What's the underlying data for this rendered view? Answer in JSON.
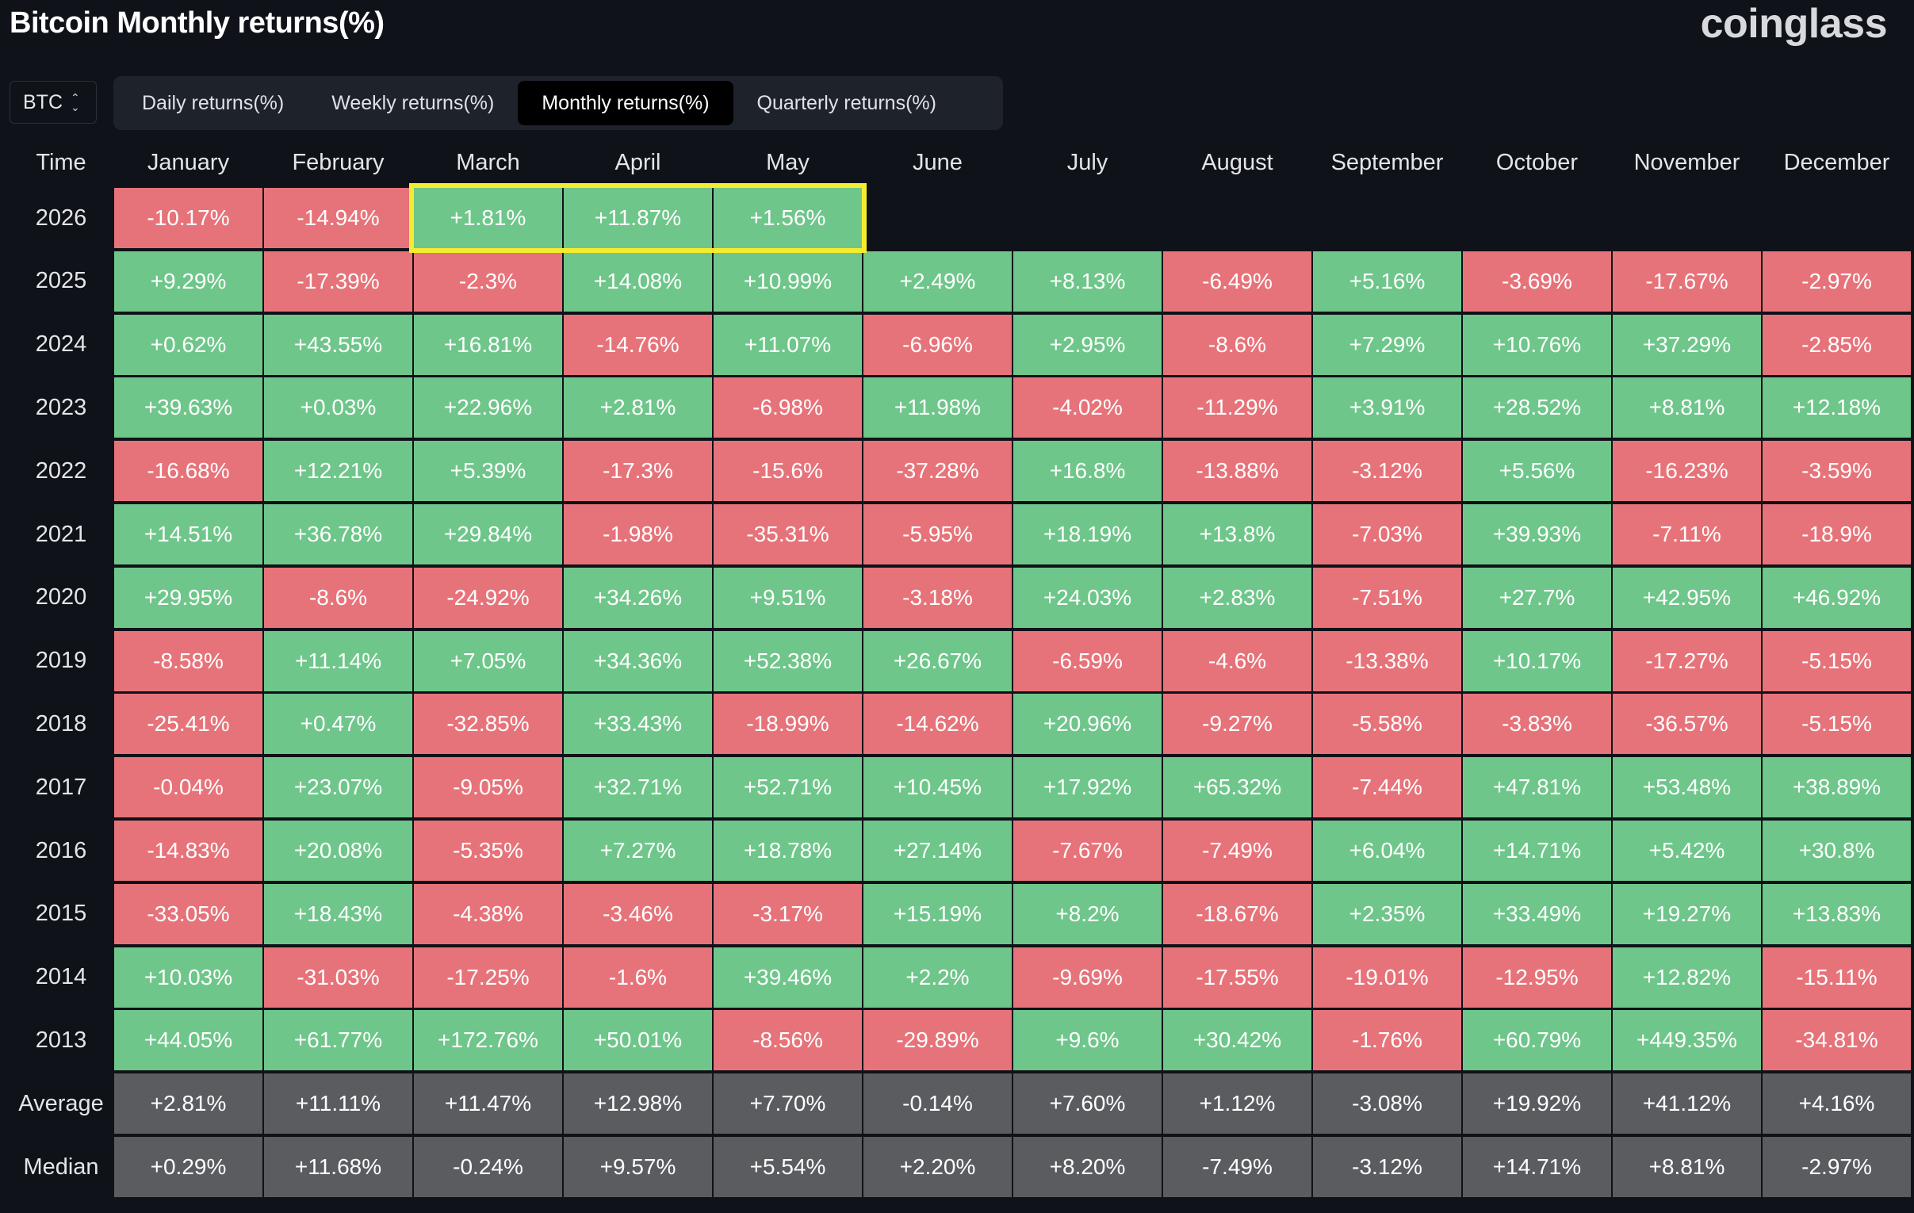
{
  "header": {
    "title": "Bitcoin Monthly returns(%)",
    "brand": "coinglass"
  },
  "asset_select": {
    "value": "BTC"
  },
  "tabs": [
    {
      "label": "Daily returns(%)",
      "active": false
    },
    {
      "label": "Weekly returns(%)",
      "active": false
    },
    {
      "label": "Monthly returns(%)",
      "active": true
    },
    {
      "label": "Quarterly returns(%)",
      "active": false
    }
  ],
  "table": {
    "time_header": "Time",
    "months": [
      "January",
      "February",
      "March",
      "April",
      "May",
      "June",
      "July",
      "August",
      "September",
      "October",
      "November",
      "December"
    ],
    "rows": [
      {
        "year": "2026",
        "values": [
          "-10.17%",
          "-14.94%",
          "+1.81%",
          "+11.87%",
          "+1.56%",
          "",
          "",
          "",
          "",
          "",
          "",
          ""
        ]
      },
      {
        "year": "2025",
        "values": [
          "+9.29%",
          "-17.39%",
          "-2.3%",
          "+14.08%",
          "+10.99%",
          "+2.49%",
          "+8.13%",
          "-6.49%",
          "+5.16%",
          "-3.69%",
          "-17.67%",
          "-2.97%"
        ]
      },
      {
        "year": "2024",
        "values": [
          "+0.62%",
          "+43.55%",
          "+16.81%",
          "-14.76%",
          "+11.07%",
          "-6.96%",
          "+2.95%",
          "-8.6%",
          "+7.29%",
          "+10.76%",
          "+37.29%",
          "-2.85%"
        ]
      },
      {
        "year": "2023",
        "values": [
          "+39.63%",
          "+0.03%",
          "+22.96%",
          "+2.81%",
          "-6.98%",
          "+11.98%",
          "-4.02%",
          "-11.29%",
          "+3.91%",
          "+28.52%",
          "+8.81%",
          "+12.18%"
        ]
      },
      {
        "year": "2022",
        "values": [
          "-16.68%",
          "+12.21%",
          "+5.39%",
          "-17.3%",
          "-15.6%",
          "-37.28%",
          "+16.8%",
          "-13.88%",
          "-3.12%",
          "+5.56%",
          "-16.23%",
          "-3.59%"
        ]
      },
      {
        "year": "2021",
        "values": [
          "+14.51%",
          "+36.78%",
          "+29.84%",
          "-1.98%",
          "-35.31%",
          "-5.95%",
          "+18.19%",
          "+13.8%",
          "-7.03%",
          "+39.93%",
          "-7.11%",
          "-18.9%"
        ]
      },
      {
        "year": "2020",
        "values": [
          "+29.95%",
          "-8.6%",
          "-24.92%",
          "+34.26%",
          "+9.51%",
          "-3.18%",
          "+24.03%",
          "+2.83%",
          "-7.51%",
          "+27.7%",
          "+42.95%",
          "+46.92%"
        ]
      },
      {
        "year": "2019",
        "values": [
          "-8.58%",
          "+11.14%",
          "+7.05%",
          "+34.36%",
          "+52.38%",
          "+26.67%",
          "-6.59%",
          "-4.6%",
          "-13.38%",
          "+10.17%",
          "-17.27%",
          "-5.15%"
        ]
      },
      {
        "year": "2018",
        "values": [
          "-25.41%",
          "+0.47%",
          "-32.85%",
          "+33.43%",
          "-18.99%",
          "-14.62%",
          "+20.96%",
          "-9.27%",
          "-5.58%",
          "-3.83%",
          "-36.57%",
          "-5.15%"
        ]
      },
      {
        "year": "2017",
        "values": [
          "-0.04%",
          "+23.07%",
          "-9.05%",
          "+32.71%",
          "+52.71%",
          "+10.45%",
          "+17.92%",
          "+65.32%",
          "-7.44%",
          "+47.81%",
          "+53.48%",
          "+38.89%"
        ]
      },
      {
        "year": "2016",
        "values": [
          "-14.83%",
          "+20.08%",
          "-5.35%",
          "+7.27%",
          "+18.78%",
          "+27.14%",
          "-7.67%",
          "-7.49%",
          "+6.04%",
          "+14.71%",
          "+5.42%",
          "+30.8%"
        ]
      },
      {
        "year": "2015",
        "values": [
          "-33.05%",
          "+18.43%",
          "-4.38%",
          "-3.46%",
          "-3.17%",
          "+15.19%",
          "+8.2%",
          "-18.67%",
          "+2.35%",
          "+33.49%",
          "+19.27%",
          "+13.83%"
        ]
      },
      {
        "year": "2014",
        "values": [
          "+10.03%",
          "-31.03%",
          "-17.25%",
          "-1.6%",
          "+39.46%",
          "+2.2%",
          "-9.69%",
          "-17.55%",
          "-19.01%",
          "-12.95%",
          "+12.82%",
          "-15.11%"
        ]
      },
      {
        "year": "2013",
        "values": [
          "+44.05%",
          "+61.77%",
          "+172.76%",
          "+50.01%",
          "-8.56%",
          "-29.89%",
          "+9.6%",
          "+30.42%",
          "-1.76%",
          "+60.79%",
          "+449.35%",
          "-34.81%"
        ]
      }
    ],
    "stats": [
      {
        "label": "Average",
        "values": [
          "+2.81%",
          "+11.11%",
          "+11.47%",
          "+12.98%",
          "+7.70%",
          "-0.14%",
          "+7.60%",
          "+1.12%",
          "-3.08%",
          "+19.92%",
          "+41.12%",
          "+4.16%"
        ]
      },
      {
        "label": "Median",
        "values": [
          "+0.29%",
          "+11.68%",
          "-0.24%",
          "+9.57%",
          "+5.54%",
          "+2.20%",
          "+8.20%",
          "-7.49%",
          "-3.12%",
          "+14.71%",
          "+8.81%",
          "-2.97%"
        ]
      }
    ]
  },
  "colors": {
    "positive": "#6fc68a",
    "negative": "#e7737a",
    "stat": "#5a5c60",
    "highlight": "#f6ec2f",
    "background": "#0f1218"
  }
}
